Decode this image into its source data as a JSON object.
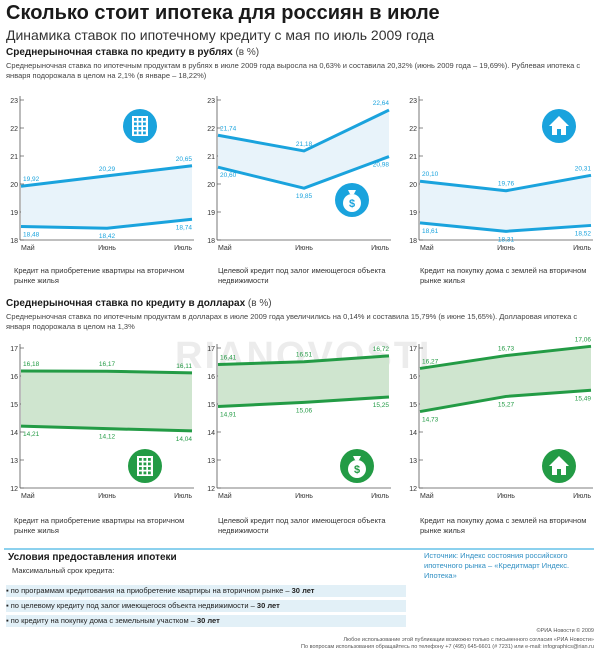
{
  "header": {
    "title": "Сколько стоит ипотека для россиян в июле",
    "subtitle": "Динамика ставок по ипотечному кредиту с мая по июль 2009 года"
  },
  "section_rub": {
    "heading": "Среднерыночная ставка по кредиту в рублях",
    "unit": "(в %)",
    "text": "Среднерыночная ставка по ипотечным продуктам в рублях в июле 2009 года выросла на 0,63% и составила 20,32% (июнь 2009 года – 19,69%). Рублевая ипотека с января подорожала в целом на 2,1% (в январе – 18,22%)"
  },
  "section_usd": {
    "heading": "Среднерыночная ставка по кредиту в долларах",
    "unit": "(в %)",
    "text": "Среднерыночная ставка по ипотечным продуктам в долларах в июле 2009 года увеличились на 0,14% и составила 15,79% (в июне 15,65%). Долларовая ипотека с января подорожала в целом на 1,3%"
  },
  "colors": {
    "rub": "#1aa3dd",
    "rub_fill": "#e8f3fa",
    "usd": "#239b45",
    "usd_fill": "#cfe5cf",
    "axis": "#555555"
  },
  "chart_data": [
    {
      "type": "area",
      "currency": "rub",
      "categories": [
        "Май",
        "Июнь",
        "Июль"
      ],
      "yticks": [
        18,
        19,
        20,
        21,
        22,
        23
      ],
      "ylim": [
        18,
        23
      ],
      "series": [
        {
          "values": [
            19.92,
            20.29,
            20.65
          ]
        },
        {
          "values": [
            18.48,
            18.42,
            18.74
          ]
        }
      ],
      "labels": {
        "upper": [
          "19,92",
          "20,29",
          "20,65"
        ],
        "lower": [
          "18,48",
          "18,42",
          "18,74"
        ]
      },
      "icon": "building-icon",
      "caption": "Кредит на приобретение квартиры на вторичном рынке жилья"
    },
    {
      "type": "area",
      "currency": "rub",
      "categories": [
        "Май",
        "Июнь",
        "Июль"
      ],
      "yticks": [
        18,
        19,
        20,
        21,
        22,
        23
      ],
      "ylim": [
        18,
        23
      ],
      "series": [
        {
          "values": [
            21.74,
            21.18,
            22.64
          ]
        },
        {
          "values": [
            20.6,
            19.85,
            20.98
          ]
        }
      ],
      "labels": {
        "upper": [
          "21,74",
          "21,18",
          "22,64"
        ],
        "lower": [
          "20,60",
          "19,85",
          "20,98"
        ]
      },
      "icon": "money-bag-icon",
      "caption": "Целевой кредит под залог имеющегося объекта недвижимости"
    },
    {
      "type": "area",
      "currency": "rub",
      "categories": [
        "Май",
        "Июнь",
        "Июль"
      ],
      "yticks": [
        18,
        19,
        20,
        21,
        22,
        23
      ],
      "ylim": [
        18,
        23
      ],
      "series": [
        {
          "values": [
            20.1,
            19.76,
            20.31
          ]
        },
        {
          "values": [
            18.61,
            18.31,
            18.52
          ]
        }
      ],
      "labels": {
        "upper": [
          "20,10",
          "19,76",
          "20,31"
        ],
        "lower": [
          "18,61",
          "18,31",
          "18,52"
        ]
      },
      "icon": "house-icon",
      "caption": "Кредит на покупку дома с землей на вторичном рынке жилья"
    },
    {
      "type": "area",
      "currency": "usd",
      "categories": [
        "Май",
        "Июнь",
        "Июль"
      ],
      "yticks": [
        12,
        13,
        14,
        15,
        16,
        17
      ],
      "ylim": [
        12,
        17
      ],
      "series": [
        {
          "values": [
            16.18,
            16.17,
            16.11
          ]
        },
        {
          "values": [
            14.21,
            14.12,
            14.04
          ]
        }
      ],
      "labels": {
        "upper": [
          "16,18",
          "16,17",
          "16,11"
        ],
        "lower": [
          "14,21",
          "14,12",
          "14,04"
        ]
      },
      "icon": "building-icon",
      "caption": "Кредит на приобретение квартиры на вторичном рынке жилья"
    },
    {
      "type": "area",
      "currency": "usd",
      "categories": [
        "Май",
        "Июнь",
        "Июль"
      ],
      "yticks": [
        12,
        13,
        14,
        15,
        16,
        17
      ],
      "ylim": [
        12,
        17
      ],
      "series": [
        {
          "values": [
            16.41,
            16.51,
            16.72
          ]
        },
        {
          "values": [
            14.91,
            15.06,
            15.25
          ]
        }
      ],
      "labels": {
        "upper": [
          "16,41",
          "16,51",
          "16,72"
        ],
        "lower": [
          "14,91",
          "15,06",
          "15,25"
        ]
      },
      "icon": "money-bag-icon",
      "caption": "Целевой кредит под залог имеющегося объекта недвижимости"
    },
    {
      "type": "area",
      "currency": "usd",
      "categories": [
        "Май",
        "Июнь",
        "Июль"
      ],
      "yticks": [
        12,
        13,
        14,
        15,
        16,
        17
      ],
      "ylim": [
        12,
        17
      ],
      "series": [
        {
          "values": [
            16.27,
            16.73,
            17.06
          ]
        },
        {
          "values": [
            14.73,
            15.27,
            15.49
          ]
        }
      ],
      "labels": {
        "upper": [
          "16,27",
          "16,73",
          "17,06"
        ],
        "lower": [
          "14,73",
          "15,27",
          "15,49"
        ]
      },
      "icon": "house-icon",
      "caption": "Кредит на покупку дома с землей на вторичном рынке жилья"
    }
  ],
  "conditions": {
    "title": "Условия предоставления ипотеки",
    "subtitle": "Максимальный срок кредита:",
    "items": [
      {
        "text": "по программам кредитования на приобретение квартиры на вторичном рынке –",
        "value": "30 лет"
      },
      {
        "text": "по целевому кредиту под залог имеющегося объекта недвижимости –",
        "value": "30 лет"
      },
      {
        "text": "по кредиту на покупку дома с земельным участком –",
        "value": "30 лет"
      }
    ]
  },
  "source": "Источник: Индекс состояния российского ипотечного рынка – «Кредитмарт Индекс. Ипотека»",
  "footer": {
    "copyright": "©РИА Новости © 2009",
    "line1": "Любое использование этой публикации возможно только с письменного согласия «РИА Новости»",
    "line2": "По вопросам использования обращайтесь по телефону +7 (495) 645-6601 (# 7231) или e-mail: infographics@rian.ru"
  },
  "watermark": "RIANOVOSTI"
}
